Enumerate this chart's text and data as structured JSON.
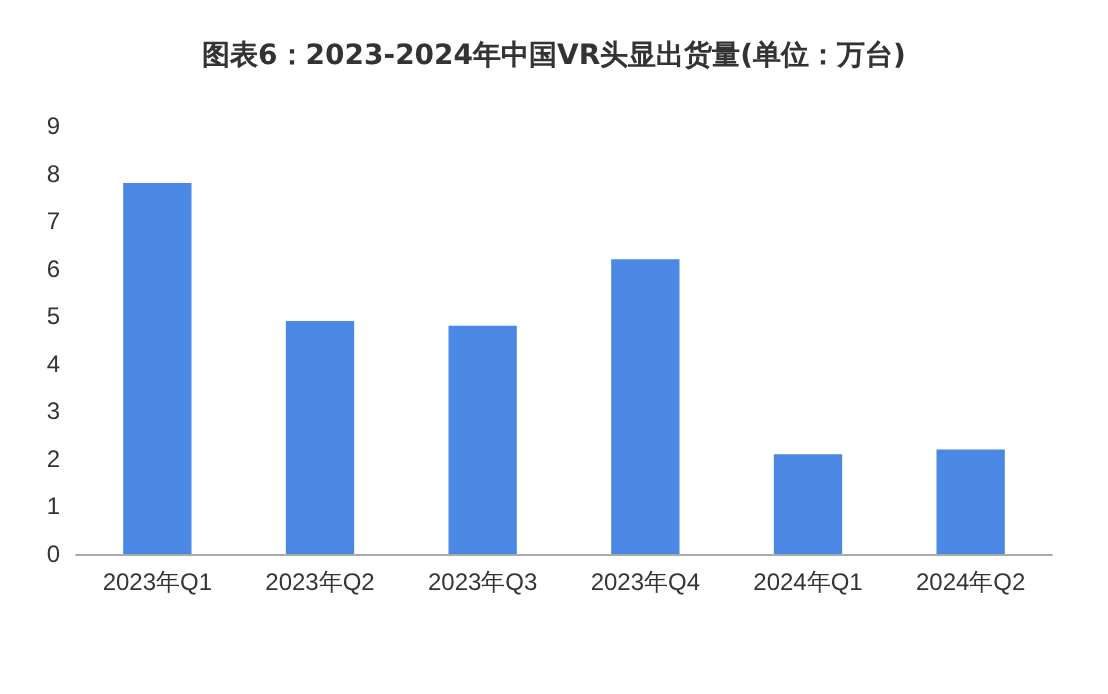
{
  "chart_data": {
    "type": "bar",
    "title": "图表6：2023-2024年中国VR头显出货量(单位：万台)",
    "categories": [
      "2023年Q1",
      "2023年Q2",
      "2023年Q3",
      "2023年Q4",
      "2024年Q1",
      "2024年Q2"
    ],
    "values": [
      7.8,
      4.9,
      4.8,
      6.2,
      2.1,
      2.2
    ],
    "color": "#4a88e4",
    "ylim": [
      0,
      9
    ],
    "yticks": [
      0,
      1,
      2,
      3,
      4,
      5,
      6,
      7,
      8,
      9
    ],
    "grid": false
  }
}
